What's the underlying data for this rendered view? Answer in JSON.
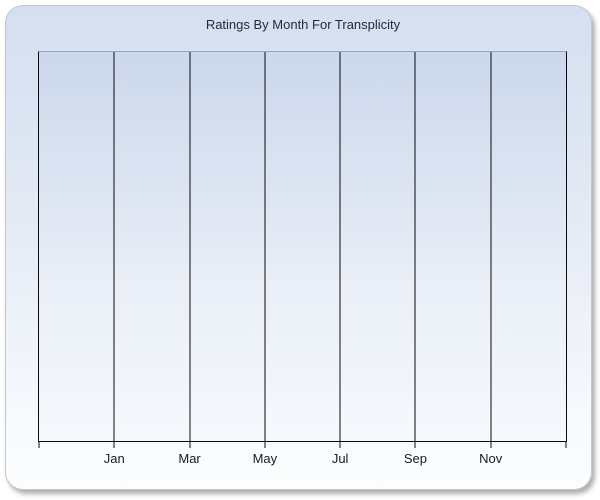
{
  "panel": {
    "title": "Ratings By Month For Transplicity"
  },
  "chart_data": {
    "type": "line",
    "title": "Ratings By Month For Transplicity",
    "xlabel": "",
    "ylabel": "",
    "x_tick_labels": [
      "Jan",
      "Mar",
      "May",
      "Jul",
      "Sep",
      "Nov"
    ],
    "x_gridline_count": 8,
    "y_tick_labels": [],
    "series": [],
    "plot_empty": true,
    "legend_visible": false,
    "grid": "vertical-only"
  },
  "colors": {
    "title_text": "#212b42",
    "tick_label_text": "#1b1b1b",
    "gridline": "#0a0a0a",
    "plot_border_top": "#9aa5b8",
    "panel_gradient_top": "#d4dff0",
    "panel_gradient_bottom": "#fbfdfe",
    "plot_gradient_top": "#cbd7ec",
    "plot_gradient_bottom": "#f6f9fd",
    "panel_border": "#c2c6cc"
  }
}
